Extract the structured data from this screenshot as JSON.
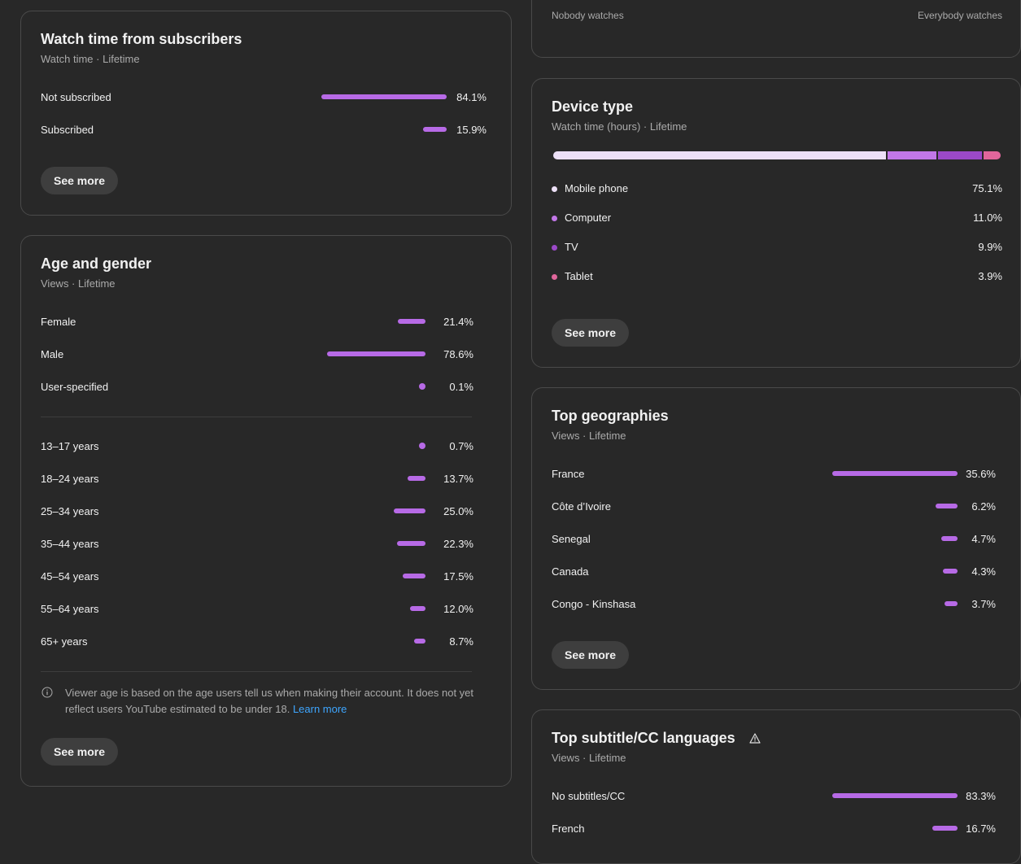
{
  "reach_scale": {
    "left_label": "Nobody watches",
    "right_label": "Everybody watches"
  },
  "subscribers": {
    "title": "Watch time from subscribers",
    "subtitle": "Watch time · Lifetime",
    "rows": [
      {
        "label": "Not subscribed",
        "value": "84.1%",
        "fraction": 0.841
      },
      {
        "label": "Subscribed",
        "value": "15.9%",
        "fraction": 0.159
      }
    ],
    "see_more": "See more"
  },
  "age_gender": {
    "title": "Age and gender",
    "subtitle": "Views · Lifetime",
    "gender": [
      {
        "label": "Female",
        "value": "21.4%",
        "fraction": 0.214
      },
      {
        "label": "Male",
        "value": "78.6%",
        "fraction": 0.786
      },
      {
        "label": "User-specified",
        "value": "0.1%",
        "fraction": 0.001
      }
    ],
    "ages": [
      {
        "label": "13–17 years",
        "value": "0.7%",
        "fraction": 0.007
      },
      {
        "label": "18–24 years",
        "value": "13.7%",
        "fraction": 0.137
      },
      {
        "label": "25–34 years",
        "value": "25.0%",
        "fraction": 0.25
      },
      {
        "label": "35–44 years",
        "value": "22.3%",
        "fraction": 0.223
      },
      {
        "label": "45–54 years",
        "value": "17.5%",
        "fraction": 0.175
      },
      {
        "label": "55–64 years",
        "value": "12.0%",
        "fraction": 0.12
      },
      {
        "label": "65+ years",
        "value": "8.7%",
        "fraction": 0.087
      }
    ],
    "note": "Viewer age is based on the age users tell us when making their account. It does not yet reflect users YouTube estimated to be under 18.",
    "learn_more": "Learn more",
    "see_more": "See more"
  },
  "device": {
    "title": "Device type",
    "subtitle": "Watch time (hours) · Lifetime",
    "rows": [
      {
        "label": "Mobile phone",
        "value": "75.1%",
        "fraction": 0.751,
        "color": "#ede0f7"
      },
      {
        "label": "Computer",
        "value": "11.0%",
        "fraction": 0.11,
        "color": "#c277e8"
      },
      {
        "label": "TV",
        "value": "9.9%",
        "fraction": 0.099,
        "color": "#9b49c8"
      },
      {
        "label": "Tablet",
        "value": "3.9%",
        "fraction": 0.039,
        "color": "#e0669b"
      }
    ],
    "see_more": "See more"
  },
  "geographies": {
    "title": "Top geographies",
    "subtitle": "Views · Lifetime",
    "rows": [
      {
        "label": "France",
        "value": "35.6%",
        "fraction": 0.356
      },
      {
        "label": "Côte d’Ivoire",
        "value": "6.2%",
        "fraction": 0.062
      },
      {
        "label": "Senegal",
        "value": "4.7%",
        "fraction": 0.047
      },
      {
        "label": "Canada",
        "value": "4.3%",
        "fraction": 0.043
      },
      {
        "label": "Congo - Kinshasa",
        "value": "3.7%",
        "fraction": 0.037
      }
    ],
    "see_more": "See more"
  },
  "subtitles": {
    "title": "Top subtitle/CC languages",
    "subtitle": "Views · Lifetime",
    "rows": [
      {
        "label": "No subtitles/CC",
        "value": "83.3%",
        "fraction": 0.833
      },
      {
        "label": "French",
        "value": "16.7%",
        "fraction": 0.167
      }
    ]
  },
  "colors": {
    "bar": "#b76ae6",
    "link": "#3ea6ff",
    "card_border": "#4a4a4a"
  }
}
